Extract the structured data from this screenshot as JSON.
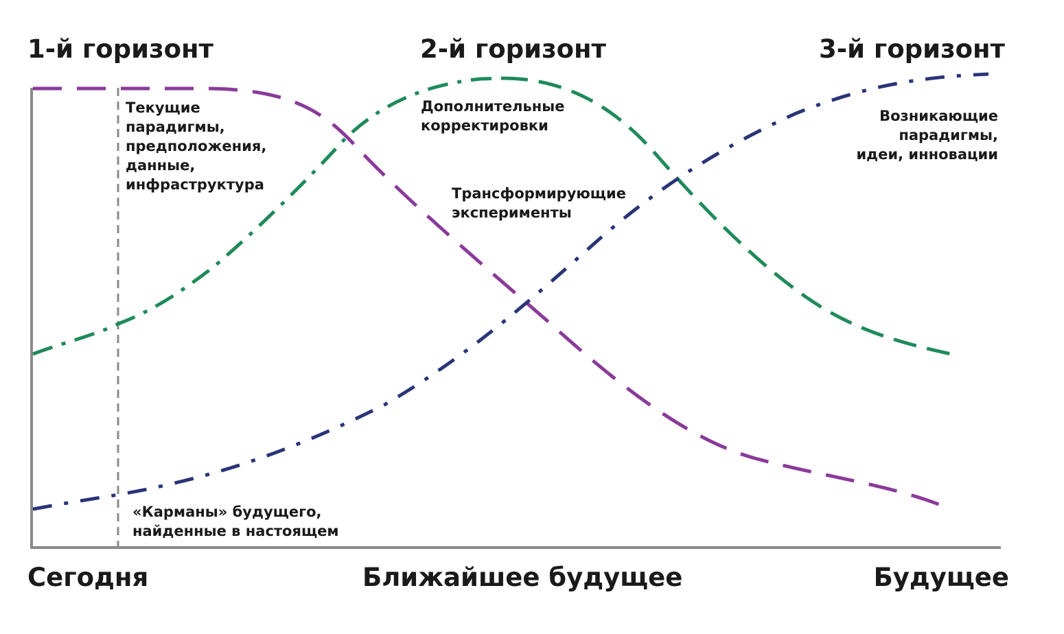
{
  "headings": {
    "h1": "1-й горизонт",
    "h2": "2-й горизонт",
    "h3": "3-й горизонт"
  },
  "notes": {
    "current": "Текущие\nпарадигмы,\nпредположения,\nданные,\nинфраструктура",
    "additional": "Дополнительные\nкорректировки",
    "transforming": "Трансформирующие\nэксперименты",
    "emerging": "Возникающие\nпарадигмы,\nидеи, инновации",
    "pockets": "«Карманы» будущего,\nнайденные в настоящем"
  },
  "axis": {
    "today": "Сегодня",
    "near_future": "Ближайшее будущее",
    "future": "Будущее"
  },
  "colors": {
    "horizon1": "#8a3a9a",
    "horizon2": "#1f8a5a",
    "horizon3": "#2a3478",
    "axis": "#8a8a8a",
    "marker": "#8a8a8a"
  }
}
